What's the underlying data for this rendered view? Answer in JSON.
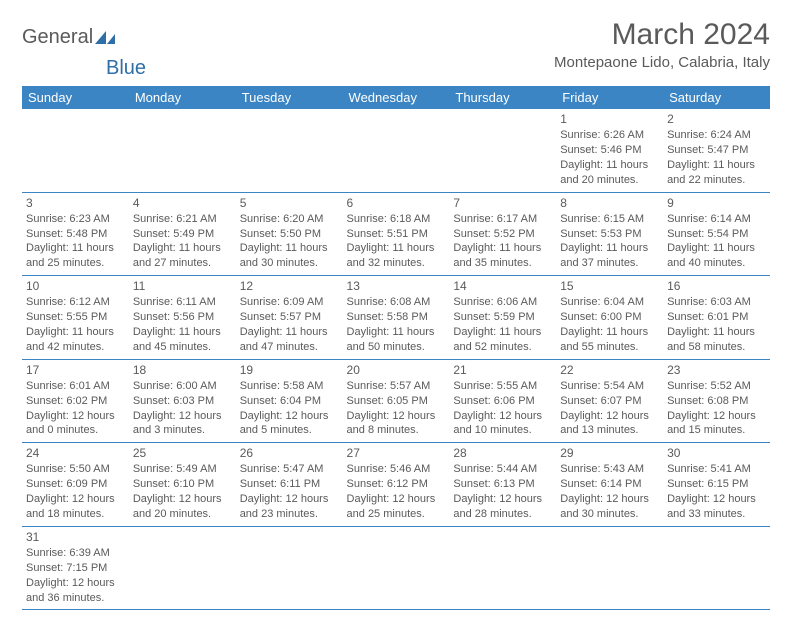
{
  "header": {
    "logo_general": "General",
    "logo_blue": "Blue",
    "month_title": "March 2024",
    "location": "Montepaone Lido, Calabria, Italy"
  },
  "colors": {
    "header_bg": "#3b85c4",
    "header_text": "#ffffff",
    "text": "#5a5a5a",
    "rule": "#3b85c4",
    "logo_blue": "#2f6fa8",
    "page_bg": "#ffffff"
  },
  "dayHeaders": [
    "Sunday",
    "Monday",
    "Tuesday",
    "Wednesday",
    "Thursday",
    "Friday",
    "Saturday"
  ],
  "weeks": [
    [
      null,
      null,
      null,
      null,
      null,
      {
        "n": "1",
        "sr": "6:26 AM",
        "ss": "5:46 PM",
        "dl": "11 hours and 20 minutes."
      },
      {
        "n": "2",
        "sr": "6:24 AM",
        "ss": "5:47 PM",
        "dl": "11 hours and 22 minutes."
      }
    ],
    [
      {
        "n": "3",
        "sr": "6:23 AM",
        "ss": "5:48 PM",
        "dl": "11 hours and 25 minutes."
      },
      {
        "n": "4",
        "sr": "6:21 AM",
        "ss": "5:49 PM",
        "dl": "11 hours and 27 minutes."
      },
      {
        "n": "5",
        "sr": "6:20 AM",
        "ss": "5:50 PM",
        "dl": "11 hours and 30 minutes."
      },
      {
        "n": "6",
        "sr": "6:18 AM",
        "ss": "5:51 PM",
        "dl": "11 hours and 32 minutes."
      },
      {
        "n": "7",
        "sr": "6:17 AM",
        "ss": "5:52 PM",
        "dl": "11 hours and 35 minutes."
      },
      {
        "n": "8",
        "sr": "6:15 AM",
        "ss": "5:53 PM",
        "dl": "11 hours and 37 minutes."
      },
      {
        "n": "9",
        "sr": "6:14 AM",
        "ss": "5:54 PM",
        "dl": "11 hours and 40 minutes."
      }
    ],
    [
      {
        "n": "10",
        "sr": "6:12 AM",
        "ss": "5:55 PM",
        "dl": "11 hours and 42 minutes."
      },
      {
        "n": "11",
        "sr": "6:11 AM",
        "ss": "5:56 PM",
        "dl": "11 hours and 45 minutes."
      },
      {
        "n": "12",
        "sr": "6:09 AM",
        "ss": "5:57 PM",
        "dl": "11 hours and 47 minutes."
      },
      {
        "n": "13",
        "sr": "6:08 AM",
        "ss": "5:58 PM",
        "dl": "11 hours and 50 minutes."
      },
      {
        "n": "14",
        "sr": "6:06 AM",
        "ss": "5:59 PM",
        "dl": "11 hours and 52 minutes."
      },
      {
        "n": "15",
        "sr": "6:04 AM",
        "ss": "6:00 PM",
        "dl": "11 hours and 55 minutes."
      },
      {
        "n": "16",
        "sr": "6:03 AM",
        "ss": "6:01 PM",
        "dl": "11 hours and 58 minutes."
      }
    ],
    [
      {
        "n": "17",
        "sr": "6:01 AM",
        "ss": "6:02 PM",
        "dl": "12 hours and 0 minutes."
      },
      {
        "n": "18",
        "sr": "6:00 AM",
        "ss": "6:03 PM",
        "dl": "12 hours and 3 minutes."
      },
      {
        "n": "19",
        "sr": "5:58 AM",
        "ss": "6:04 PM",
        "dl": "12 hours and 5 minutes."
      },
      {
        "n": "20",
        "sr": "5:57 AM",
        "ss": "6:05 PM",
        "dl": "12 hours and 8 minutes."
      },
      {
        "n": "21",
        "sr": "5:55 AM",
        "ss": "6:06 PM",
        "dl": "12 hours and 10 minutes."
      },
      {
        "n": "22",
        "sr": "5:54 AM",
        "ss": "6:07 PM",
        "dl": "12 hours and 13 minutes."
      },
      {
        "n": "23",
        "sr": "5:52 AM",
        "ss": "6:08 PM",
        "dl": "12 hours and 15 minutes."
      }
    ],
    [
      {
        "n": "24",
        "sr": "5:50 AM",
        "ss": "6:09 PM",
        "dl": "12 hours and 18 minutes."
      },
      {
        "n": "25",
        "sr": "5:49 AM",
        "ss": "6:10 PM",
        "dl": "12 hours and 20 minutes."
      },
      {
        "n": "26",
        "sr": "5:47 AM",
        "ss": "6:11 PM",
        "dl": "12 hours and 23 minutes."
      },
      {
        "n": "27",
        "sr": "5:46 AM",
        "ss": "6:12 PM",
        "dl": "12 hours and 25 minutes."
      },
      {
        "n": "28",
        "sr": "5:44 AM",
        "ss": "6:13 PM",
        "dl": "12 hours and 28 minutes."
      },
      {
        "n": "29",
        "sr": "5:43 AM",
        "ss": "6:14 PM",
        "dl": "12 hours and 30 minutes."
      },
      {
        "n": "30",
        "sr": "5:41 AM",
        "ss": "6:15 PM",
        "dl": "12 hours and 33 minutes."
      }
    ],
    [
      {
        "n": "31",
        "sr": "6:39 AM",
        "ss": "7:15 PM",
        "dl": "12 hours and 36 minutes."
      },
      null,
      null,
      null,
      null,
      null,
      null
    ]
  ],
  "labels": {
    "sunrise": "Sunrise:",
    "sunset": "Sunset:",
    "daylight": "Daylight:"
  }
}
